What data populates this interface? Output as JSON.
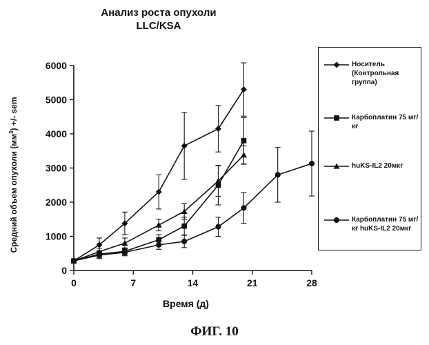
{
  "figure": {
    "title_line1": "Анализ роста опухоли",
    "title_line2": "LLC/KSA",
    "caption": "ФИГ. 10"
  },
  "chart_data": {
    "type": "line",
    "xlabel": "Время (д)",
    "ylabel_parts": [
      "Средний объем опухоли (мм",
      "3",
      ") +/- sem"
    ],
    "x_ticks": [
      0,
      7,
      14,
      21,
      28
    ],
    "y_ticks": [
      0,
      1000,
      2000,
      3000,
      4000,
      5000,
      6000
    ],
    "x_tick_labels": [
      "0",
      "7",
      "14",
      "21",
      "28"
    ],
    "y_tick_labels": [
      "0",
      "1000",
      "2000",
      "3000",
      "4000",
      "5000",
      "6000"
    ],
    "xlim": [
      0,
      28
    ],
    "ylim": [
      0,
      6000
    ],
    "grid": false,
    "legend_position": "right",
    "series": [
      {
        "name": "Носитель (Контрольная группа)",
        "marker": "diamond",
        "color": "#111111",
        "x": [
          0,
          3,
          6,
          10,
          13,
          17,
          20
        ],
        "y": [
          280,
          750,
          1380,
          2300,
          3650,
          4150,
          5300
        ],
        "err": [
          0,
          200,
          330,
          500,
          980,
          680,
          780
        ]
      },
      {
        "name": "Карбоплатин 75 мг/кг",
        "marker": "square",
        "color": "#111111",
        "x": [
          0,
          3,
          6,
          10,
          13,
          17,
          20
        ],
        "y": [
          280,
          480,
          560,
          900,
          1300,
          2500,
          3800
        ],
        "err": [
          0,
          100,
          100,
          150,
          260,
          580,
          680
        ]
      },
      {
        "name": "huKS-IL2 20мкг",
        "marker": "triangle",
        "color": "#111111",
        "x": [
          0,
          3,
          6,
          10,
          13,
          17,
          20
        ],
        "y": [
          280,
          550,
          800,
          1330,
          1730,
          2620,
          3380
        ],
        "err": [
          0,
          100,
          150,
          170,
          230,
          450,
          270
        ]
      },
      {
        "name": "Карбоплатин 75 мг/кг huKS-IL2 20мкг",
        "marker": "circle",
        "color": "#111111",
        "x": [
          0,
          3,
          6,
          10,
          13,
          17,
          20,
          24,
          28
        ],
        "y": [
          280,
          450,
          530,
          750,
          850,
          1280,
          1830,
          2800,
          3130
        ],
        "err": [
          0,
          100,
          100,
          130,
          180,
          280,
          450,
          800,
          950
        ]
      }
    ]
  },
  "legend": [
    {
      "label": "Носитель (Контрольная группа)",
      "marker": "diamond"
    },
    {
      "label": "Карбоплатин 75 мг/кг",
      "marker": "square"
    },
    {
      "label": "huKS-IL2 20мкг",
      "marker": "triangle"
    },
    {
      "label": "Карбоплатин 75 мг/кг huKS-IL2 20мкг",
      "marker": "circle"
    }
  ]
}
